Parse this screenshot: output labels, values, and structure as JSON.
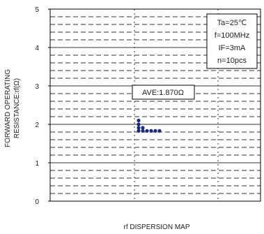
{
  "chart_data": {
    "type": "scatter",
    "title": "",
    "caption": "rf DISPERSION MAP",
    "ylabel_lines": [
      "FORWARD OPERATING",
      "RESISTANCE:rf(Ω)"
    ],
    "xlabel": "",
    "ylim": [
      0,
      5
    ],
    "yticks": [
      "0",
      "1",
      "2",
      "3",
      "4",
      "5"
    ],
    "grid": "dashed-horizontal",
    "conditions": [
      "Ta=25℃",
      "f=100MHz",
      "IF=3mA",
      "n=10pcs"
    ],
    "conditions_placement": "top-right",
    "average_label": "AVE:1.870Ω",
    "points": [
      {
        "col": 0,
        "y": 2.1
      },
      {
        "col": 0,
        "y": 2.0
      },
      {
        "col": 0,
        "y": 1.91
      },
      {
        "col": 0,
        "y": 1.83
      },
      {
        "col": 1,
        "y": 1.83
      },
      {
        "col": 2,
        "y": 1.83
      },
      {
        "col": 3,
        "y": 1.83
      },
      {
        "col": 4,
        "y": 1.83
      },
      {
        "col": 5,
        "y": 1.83
      },
      {
        "col": 1,
        "y": 1.91
      }
    ],
    "colors": {
      "point": "#1c2a7a",
      "grid": "#333333",
      "frame": "#000000"
    }
  }
}
